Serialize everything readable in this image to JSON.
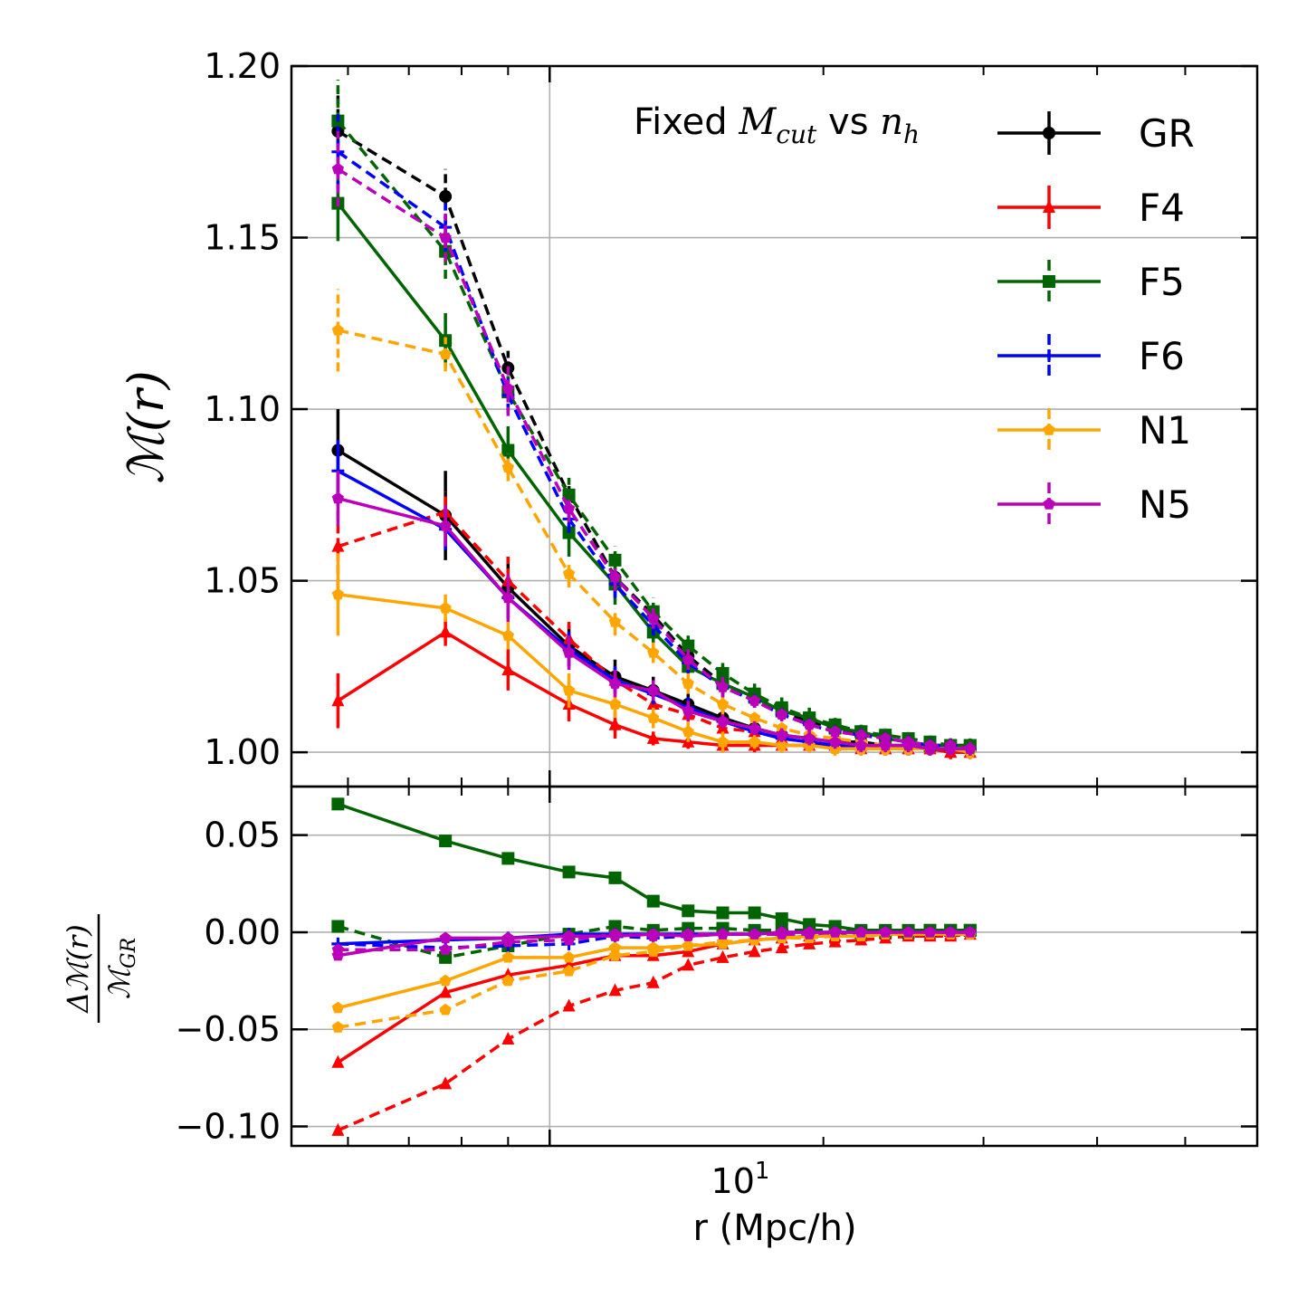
{
  "chart_data": [
    {
      "type": "line",
      "panel": "top",
      "xlabel": "r (Mpc/h)",
      "ylabel": "M(r)",
      "xscale": "log",
      "xlim": [
        5.2,
        60
      ],
      "ylim": [
        0.99,
        1.2
      ],
      "yticks": [
        "1.00",
        "1.05",
        "1.10",
        "1.15",
        "1.20"
      ],
      "yticks_values": [
        1.0,
        1.05,
        1.1,
        1.15,
        1.2
      ],
      "grid": true,
      "annotation_prefix": "Fixed ",
      "annotation_var1": "M",
      "annotation_sub1": "cut",
      "annotation_mid": " vs ",
      "annotation_var2": "n",
      "annotation_sub2": "h",
      "legend": [
        "GR",
        "F4",
        "F5",
        "F6",
        "N1",
        "N5"
      ],
      "legend_position": "top-right",
      "x": [
        5.85,
        7.68,
        9.0,
        10.5,
        11.8,
        13.0,
        14.2,
        15.5,
        16.8,
        18.0,
        19.3,
        20.6,
        22.0,
        23.4,
        24.8,
        26.2,
        27.6,
        29.0
      ],
      "series": [
        {
          "name": "GR",
          "color": "#000000",
          "marker": "circle",
          "style": "solid",
          "values": [
            1.088,
            1.069,
            1.048,
            1.031,
            1.022,
            1.018,
            1.014,
            1.01,
            1.007,
            1.005,
            1.004,
            1.003,
            1.003,
            1.002,
            1.002,
            1.001,
            1.001,
            1.001
          ],
          "err": [
            0.012,
            0.013,
            0.009,
            0.006,
            0.005,
            0.004,
            0.004,
            0.003,
            0.003,
            0.002,
            0.002,
            0.002,
            0.002,
            0.002,
            0.002,
            0.002,
            0.002,
            0.002
          ]
        },
        {
          "name": "GR",
          "color": "#000000",
          "marker": "circle",
          "style": "dashed",
          "values": [
            1.181,
            1.162,
            1.112,
            1.075,
            1.051,
            1.04,
            1.028,
            1.02,
            1.016,
            1.012,
            1.009,
            1.007,
            1.005,
            1.004,
            1.003,
            1.002,
            1.002,
            1.001
          ],
          "err": [
            0.012,
            0.008,
            0.005,
            0.004,
            0.004,
            0.003,
            0.003,
            0.003,
            0.003,
            0.003,
            0.002,
            0.002,
            0.002,
            0.002,
            0.002,
            0.002,
            0.002,
            0.002
          ]
        },
        {
          "name": "F4",
          "color": "#ff0000",
          "marker": "triangle",
          "style": "solid",
          "values": [
            1.015,
            1.035,
            1.024,
            1.014,
            1.008,
            1.004,
            1.003,
            1.002,
            1.002,
            1.002,
            1.002,
            1.002,
            1.001,
            1.001,
            1.001,
            1.001,
            1.0,
            1.0
          ],
          "err": [
            0.008,
            0.004,
            0.006,
            0.005,
            0.004,
            0.002,
            0.002,
            0.002,
            0.002,
            0.002,
            0.002,
            0.002,
            0.002,
            0.002,
            0.002,
            0.002,
            0.002,
            0.002
          ]
        },
        {
          "name": "F4",
          "color": "#ff0000",
          "marker": "triangle",
          "style": "dashed",
          "values": [
            1.06,
            1.07,
            1.05,
            1.033,
            1.021,
            1.014,
            1.011,
            1.007,
            1.006,
            1.004,
            1.003,
            1.002,
            1.002,
            1.001,
            1.001,
            1.001,
            1.0,
            1.0
          ],
          "err": [
            0.016,
            0.006,
            0.007,
            0.005,
            0.004,
            0.003,
            0.003,
            0.002,
            0.002,
            0.002,
            0.002,
            0.002,
            0.002,
            0.002,
            0.002,
            0.002,
            0.002,
            0.002
          ]
        },
        {
          "name": "F5",
          "color": "#006400",
          "marker": "square",
          "style": "solid",
          "values": [
            1.16,
            1.12,
            1.088,
            1.064,
            1.049,
            1.035,
            1.025,
            1.02,
            1.016,
            1.012,
            1.01,
            1.007,
            1.006,
            1.004,
            1.003,
            1.002,
            1.002,
            1.002
          ],
          "err": [
            0.011,
            0.008,
            0.007,
            0.007,
            0.006,
            0.005,
            0.004,
            0.004,
            0.003,
            0.003,
            0.003,
            0.003,
            0.002,
            0.002,
            0.002,
            0.002,
            0.002,
            0.002
          ]
        },
        {
          "name": "F5",
          "color": "#006400",
          "marker": "square",
          "style": "dashed",
          "values": [
            1.184,
            1.146,
            1.105,
            1.075,
            1.056,
            1.041,
            1.031,
            1.023,
            1.017,
            1.013,
            1.01,
            1.008,
            1.006,
            1.005,
            1.004,
            1.003,
            1.002,
            1.002
          ],
          "err": [
            0.012,
            0.008,
            0.006,
            0.005,
            0.004,
            0.004,
            0.003,
            0.003,
            0.003,
            0.003,
            0.002,
            0.002,
            0.002,
            0.002,
            0.002,
            0.002,
            0.002,
            0.002
          ]
        },
        {
          "name": "F6",
          "color": "#0000ff",
          "marker": "plus",
          "style": "solid",
          "values": [
            1.082,
            1.065,
            1.045,
            1.03,
            1.021,
            1.017,
            1.013,
            1.009,
            1.006,
            1.004,
            1.003,
            1.002,
            1.002,
            1.002,
            1.001,
            1.001,
            1.001,
            1.001
          ],
          "err": [
            0.009,
            0.006,
            0.006,
            0.005,
            0.004,
            0.003,
            0.003,
            0.002,
            0.002,
            0.002,
            0.002,
            0.002,
            0.002,
            0.002,
            0.002,
            0.002,
            0.002,
            0.002
          ]
        },
        {
          "name": "F6",
          "color": "#0000ff",
          "marker": "plus",
          "style": "dashed",
          "values": [
            1.175,
            1.153,
            1.104,
            1.068,
            1.049,
            1.037,
            1.026,
            1.019,
            1.015,
            1.011,
            1.008,
            1.006,
            1.005,
            1.004,
            1.003,
            1.002,
            1.002,
            1.001
          ],
          "err": [
            0.011,
            0.007,
            0.005,
            0.004,
            0.004,
            0.003,
            0.003,
            0.003,
            0.002,
            0.002,
            0.002,
            0.002,
            0.002,
            0.002,
            0.002,
            0.002,
            0.002,
            0.002
          ]
        },
        {
          "name": "N1",
          "color": "#ffa500",
          "marker": "pentagon",
          "style": "solid",
          "values": [
            1.046,
            1.042,
            1.034,
            1.018,
            1.014,
            1.01,
            1.006,
            1.003,
            1.003,
            1.002,
            1.002,
            1.001,
            1.001,
            1.001,
            1.001,
            1.001,
            1.001,
            1.0
          ],
          "err": [
            0.012,
            0.004,
            0.004,
            0.005,
            0.004,
            0.003,
            0.003,
            0.003,
            0.002,
            0.002,
            0.002,
            0.002,
            0.002,
            0.002,
            0.002,
            0.002,
            0.002,
            0.002
          ]
        },
        {
          "name": "N1",
          "color": "#ffa500",
          "marker": "pentagon",
          "style": "dashed",
          "values": [
            1.123,
            1.116,
            1.083,
            1.052,
            1.038,
            1.029,
            1.02,
            1.014,
            1.01,
            1.007,
            1.005,
            1.004,
            1.003,
            1.002,
            1.002,
            1.001,
            1.001,
            1.001
          ],
          "err": [
            0.012,
            0.005,
            0.004,
            0.004,
            0.004,
            0.003,
            0.003,
            0.003,
            0.002,
            0.002,
            0.002,
            0.002,
            0.002,
            0.002,
            0.002,
            0.002,
            0.002,
            0.002
          ]
        },
        {
          "name": "N5",
          "color": "#bb00bb",
          "marker": "pentagon",
          "style": "solid",
          "values": [
            1.074,
            1.066,
            1.045,
            1.029,
            1.02,
            1.018,
            1.012,
            1.009,
            1.007,
            1.005,
            1.004,
            1.003,
            1.002,
            1.002,
            1.002,
            1.001,
            1.001,
            1.001
          ],
          "err": [
            0.008,
            0.006,
            0.007,
            0.005,
            0.004,
            0.003,
            0.003,
            0.002,
            0.002,
            0.002,
            0.002,
            0.002,
            0.002,
            0.002,
            0.002,
            0.002,
            0.002,
            0.002
          ]
        },
        {
          "name": "N5",
          "color": "#bb00bb",
          "marker": "pentagon",
          "style": "dashed",
          "values": [
            1.17,
            1.15,
            1.106,
            1.071,
            1.051,
            1.039,
            1.027,
            1.019,
            1.015,
            1.011,
            1.008,
            1.006,
            1.005,
            1.004,
            1.003,
            1.002,
            1.002,
            1.001
          ],
          "err": [
            0.011,
            0.007,
            0.008,
            0.004,
            0.004,
            0.003,
            0.003,
            0.003,
            0.002,
            0.002,
            0.002,
            0.002,
            0.002,
            0.002,
            0.002,
            0.002,
            0.002,
            0.002
          ]
        }
      ]
    },
    {
      "type": "line",
      "panel": "bottom",
      "xlabel": "r (Mpc/h)",
      "xtick_base": "10",
      "xtick_exp": "1",
      "ylabel": "ΔM(r) / M_GR",
      "xscale": "log",
      "xlim": [
        5.2,
        60
      ],
      "ylim": [
        -0.11,
        0.075
      ],
      "yticks": [
        "0.05",
        "0.00",
        "−0.05",
        "−0.10"
      ],
      "yticks_values": [
        0.05,
        0.0,
        -0.05,
        -0.1
      ],
      "grid": true,
      "x": [
        5.85,
        7.68,
        9.0,
        10.5,
        11.8,
        13.0,
        14.2,
        15.5,
        16.8,
        18.0,
        19.3,
        20.6,
        22.0,
        23.4,
        24.8,
        26.2,
        27.6,
        29.0
      ],
      "series": [
        {
          "name": "F4",
          "color": "#ff0000",
          "marker": "triangle",
          "style": "solid",
          "values": [
            -0.067,
            -0.031,
            -0.022,
            -0.017,
            -0.012,
            -0.012,
            -0.01,
            -0.006,
            -0.004,
            -0.003,
            -0.002,
            -0.002,
            -0.002,
            -0.001,
            -0.001,
            -0.001,
            -0.001,
            -0.001
          ]
        },
        {
          "name": "F4",
          "color": "#ff0000",
          "marker": "triangle",
          "style": "dashed",
          "values": [
            -0.102,
            -0.078,
            -0.055,
            -0.038,
            -0.03,
            -0.026,
            -0.017,
            -0.013,
            -0.01,
            -0.008,
            -0.006,
            -0.005,
            -0.004,
            -0.003,
            -0.002,
            -0.002,
            -0.002,
            -0.001
          ]
        },
        {
          "name": "F5",
          "color": "#006400",
          "marker": "square",
          "style": "solid",
          "values": [
            0.066,
            0.047,
            0.038,
            0.031,
            0.028,
            0.016,
            0.011,
            0.01,
            0.01,
            0.007,
            0.004,
            0.003,
            0.001,
            0.001,
            0.001,
            0.001,
            0.001,
            0.001
          ]
        },
        {
          "name": "F5",
          "color": "#006400",
          "marker": "square",
          "style": "dashed",
          "values": [
            0.003,
            -0.013,
            -0.007,
            -0.001,
            0.003,
            0.001,
            0.002,
            0.002,
            0.001,
            0.001,
            0.001,
            0.001,
            0.0,
            0.0,
            0.0,
            0.001,
            0.001,
            0.001
          ]
        },
        {
          "name": "F6",
          "color": "#0000ff",
          "marker": "plus",
          "style": "solid",
          "values": [
            -0.006,
            -0.004,
            -0.003,
            -0.001,
            -0.001,
            -0.001,
            -0.001,
            -0.001,
            -0.001,
            0.0,
            0.0,
            0.0,
            0.0,
            0.0,
            0.0,
            0.0,
            0.0,
            0.0
          ]
        },
        {
          "name": "F6",
          "color": "#0000ff",
          "marker": "plus",
          "style": "dashed",
          "values": [
            -0.006,
            -0.008,
            -0.007,
            -0.006,
            -0.002,
            -0.003,
            -0.002,
            -0.001,
            -0.001,
            -0.001,
            -0.001,
            -0.001,
            0.0,
            0.0,
            0.0,
            0.0,
            0.0,
            0.0
          ]
        },
        {
          "name": "N1",
          "color": "#ffa500",
          "marker": "pentagon",
          "style": "solid",
          "values": [
            -0.039,
            -0.025,
            -0.013,
            -0.013,
            -0.008,
            -0.008,
            -0.007,
            -0.006,
            -0.004,
            -0.003,
            -0.002,
            -0.002,
            -0.002,
            -0.001,
            -0.001,
            -0.001,
            -0.001,
            -0.001
          ]
        },
        {
          "name": "N1",
          "color": "#ffa500",
          "marker": "pentagon",
          "style": "dashed",
          "values": [
            -0.049,
            -0.04,
            -0.025,
            -0.02,
            -0.012,
            -0.01,
            -0.007,
            -0.005,
            -0.004,
            -0.003,
            -0.003,
            -0.002,
            -0.002,
            -0.001,
            -0.001,
            -0.001,
            -0.001,
            -0.001
          ]
        },
        {
          "name": "N5",
          "color": "#bb00bb",
          "marker": "pentagon",
          "style": "solid",
          "values": [
            -0.012,
            -0.003,
            -0.003,
            -0.002,
            -0.002,
            -0.001,
            -0.002,
            -0.001,
            -0.001,
            0.0,
            0.0,
            0.0,
            0.0,
            0.0,
            0.0,
            0.0,
            0.0,
            0.0
          ]
        },
        {
          "name": "N5",
          "color": "#bb00bb",
          "marker": "pentagon",
          "style": "dashed",
          "values": [
            -0.009,
            -0.009,
            -0.005,
            -0.004,
            -0.001,
            -0.002,
            -0.001,
            -0.001,
            -0.001,
            -0.001,
            -0.001,
            0.0,
            0.0,
            0.0,
            0.0,
            0.0,
            0.0,
            0.0
          ]
        }
      ]
    }
  ]
}
